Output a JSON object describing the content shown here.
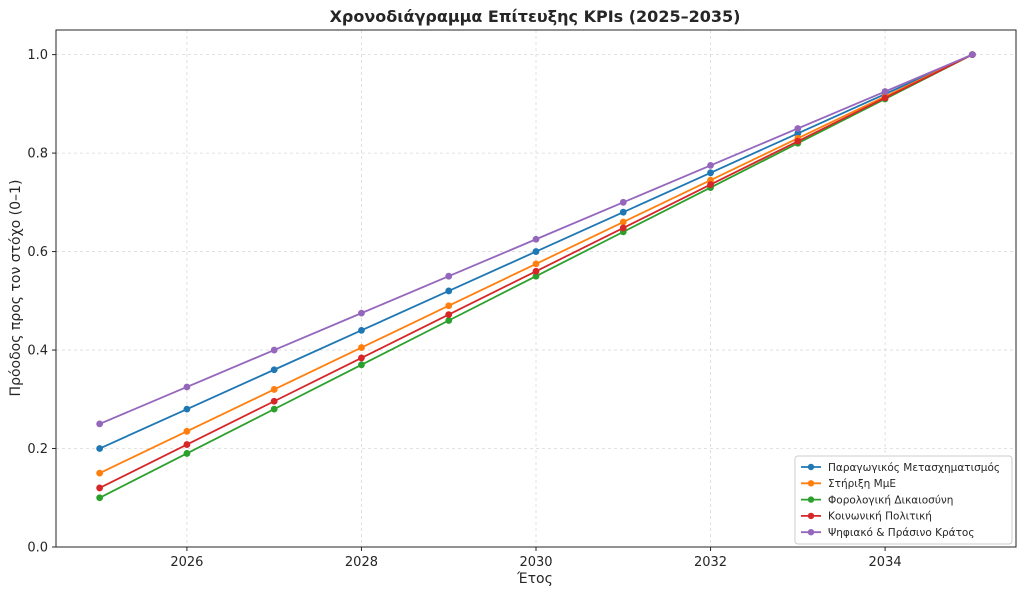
{
  "chart_data": {
    "type": "line",
    "title": "Χρονοδιάγραμμα Επίτευξης KPIs (2025–2035)",
    "xlabel": "Έτος",
    "ylabel": "Πρόοδος προς τον στόχο (0–1)",
    "x": [
      2025,
      2026,
      2027,
      2028,
      2029,
      2030,
      2031,
      2032,
      2033,
      2034,
      2035
    ],
    "xlim": [
      2024.5,
      2035.5
    ],
    "ylim": [
      0,
      1.05
    ],
    "xticks": [
      2026,
      2028,
      2030,
      2032,
      2034
    ],
    "xtick_labels": [
      "2026",
      "2028",
      "2030",
      "2032",
      "2034"
    ],
    "yticks": [
      0,
      0.2,
      0.4,
      0.6,
      0.8,
      1.0
    ],
    "ytick_labels": [
      "0.0",
      "0.2",
      "0.4",
      "0.6",
      "0.8",
      "1.0"
    ],
    "grid": true,
    "legend_position": "lower-right",
    "series": [
      {
        "name": "Παραγωγικός Μετασχηματισμός",
        "color": "#1f77b4",
        "values": [
          0.2,
          0.28,
          0.36,
          0.44,
          0.52,
          0.6,
          0.68,
          0.76,
          0.84,
          0.92,
          1.0
        ]
      },
      {
        "name": "Στήριξη ΜμΕ",
        "color": "#ff7f0e",
        "values": [
          0.15,
          0.235,
          0.32,
          0.405,
          0.49,
          0.575,
          0.66,
          0.745,
          0.83,
          0.915,
          1.0
        ]
      },
      {
        "name": "Φορολογική Δικαιοσύνη",
        "color": "#2ca02c",
        "values": [
          0.1,
          0.19,
          0.28,
          0.37,
          0.46,
          0.55,
          0.64,
          0.73,
          0.82,
          0.91,
          1.0
        ]
      },
      {
        "name": "Κοινωνική Πολιτική",
        "color": "#d62728",
        "values": [
          0.12,
          0.208,
          0.296,
          0.384,
          0.472,
          0.56,
          0.648,
          0.736,
          0.824,
          0.912,
          1.0
        ]
      },
      {
        "name": "Ψηφιακό & Πράσινο Κράτος",
        "color": "#9467bd",
        "values": [
          0.25,
          0.325,
          0.4,
          0.475,
          0.55,
          0.625,
          0.7,
          0.775,
          0.85,
          0.925,
          1.0
        ]
      }
    ]
  }
}
